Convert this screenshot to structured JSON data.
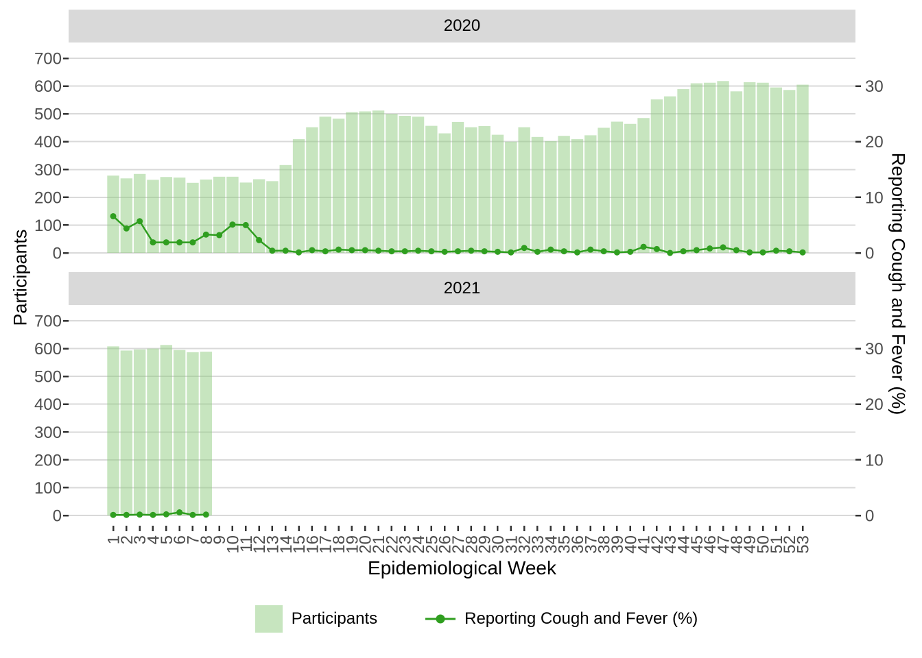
{
  "figure": {
    "xlabel": "Epidemiological Week",
    "ylabel_left": "Participants",
    "ylabel_right": "Reporting Cough and Fever (%)"
  },
  "legend": {
    "items": [
      {
        "label": "Participants",
        "type": "fill-swatch"
      },
      {
        "label": "Reporting Cough and Fever (%)",
        "type": "line-point"
      }
    ]
  },
  "colors": {
    "bar_fill": "#c7e5bf",
    "bar_fill_base": "#8fcb7f",
    "bar_opacity": 0.5,
    "line": "#2f9e1f",
    "strip_bg": "#d9d9d9",
    "gridline": "#d9d9d9",
    "tick_label": "#4d4d4d",
    "tick_mark": "#333333"
  },
  "chart_data": {
    "type": "bar+line",
    "dual_axis_ratio": 20,
    "xlabel": "Epidemiological Week",
    "ylabel_left": "Participants",
    "ylabel_right": "Reporting Cough and Fever (%)",
    "ylim_left": [
      0,
      700
    ],
    "ylim_right": [
      0,
      30
    ],
    "yticks_left": [
      0,
      100,
      200,
      300,
      400,
      500,
      600,
      700
    ],
    "yticks_right": [
      0,
      10,
      20,
      30
    ],
    "grid": "horizontal-major",
    "legend_position": "bottom",
    "x_ticks": [
      1,
      2,
      3,
      4,
      5,
      6,
      7,
      8,
      9,
      10,
      11,
      12,
      13,
      14,
      15,
      16,
      17,
      18,
      19,
      20,
      21,
      22,
      23,
      24,
      25,
      26,
      27,
      28,
      29,
      30,
      31,
      32,
      33,
      34,
      35,
      36,
      37,
      38,
      39,
      40,
      41,
      42,
      43,
      44,
      45,
      46,
      47,
      48,
      49,
      50,
      51,
      52,
      53
    ],
    "facets": [
      {
        "label": "2020",
        "weeks": [
          1,
          2,
          3,
          4,
          5,
          6,
          7,
          8,
          9,
          10,
          11,
          12,
          13,
          14,
          15,
          16,
          17,
          18,
          19,
          20,
          21,
          22,
          23,
          24,
          25,
          26,
          27,
          28,
          29,
          30,
          31,
          32,
          33,
          34,
          35,
          36,
          37,
          38,
          39,
          40,
          41,
          42,
          43,
          44,
          45,
          46,
          47,
          48,
          49,
          50,
          51,
          52,
          53
        ],
        "participants": [
          278,
          268,
          284,
          263,
          273,
          271,
          252,
          264,
          274,
          274,
          253,
          265,
          258,
          316,
          409,
          452,
          490,
          483,
          506,
          509,
          512,
          500,
          493,
          490,
          457,
          430,
          471,
          452,
          456,
          425,
          400,
          452,
          417,
          402,
          421,
          409,
          423,
          450,
          472,
          464,
          485,
          552,
          563,
          589,
          610,
          612,
          618,
          581,
          614,
          612,
          595,
          586,
          605
        ],
        "cough_fever_pct": [
          6.6,
          4.4,
          5.7,
          1.9,
          1.9,
          1.9,
          1.9,
          3.3,
          3.2,
          5.1,
          5.0,
          2.3,
          0.4,
          0.4,
          0.1,
          0.5,
          0.3,
          0.6,
          0.5,
          0.5,
          0.4,
          0.3,
          0.3,
          0.4,
          0.3,
          0.2,
          0.3,
          0.4,
          0.3,
          0.2,
          0.1,
          0.9,
          0.2,
          0.6,
          0.3,
          0.1,
          0.6,
          0.3,
          0.1,
          0.2,
          1.1,
          0.7,
          0.0,
          0.3,
          0.5,
          0.8,
          1.0,
          0.5,
          0.1,
          0.1,
          0.4,
          0.3,
          0.1
        ]
      },
      {
        "label": "2021",
        "weeks": [
          1,
          2,
          3,
          4,
          5,
          6,
          7,
          8
        ],
        "participants": [
          608,
          593,
          597,
          600,
          613,
          595,
          587,
          589
        ],
        "cough_fever_pct": [
          0.1,
          0.1,
          0.15,
          0.1,
          0.2,
          0.55,
          0.1,
          0.15
        ]
      }
    ]
  }
}
